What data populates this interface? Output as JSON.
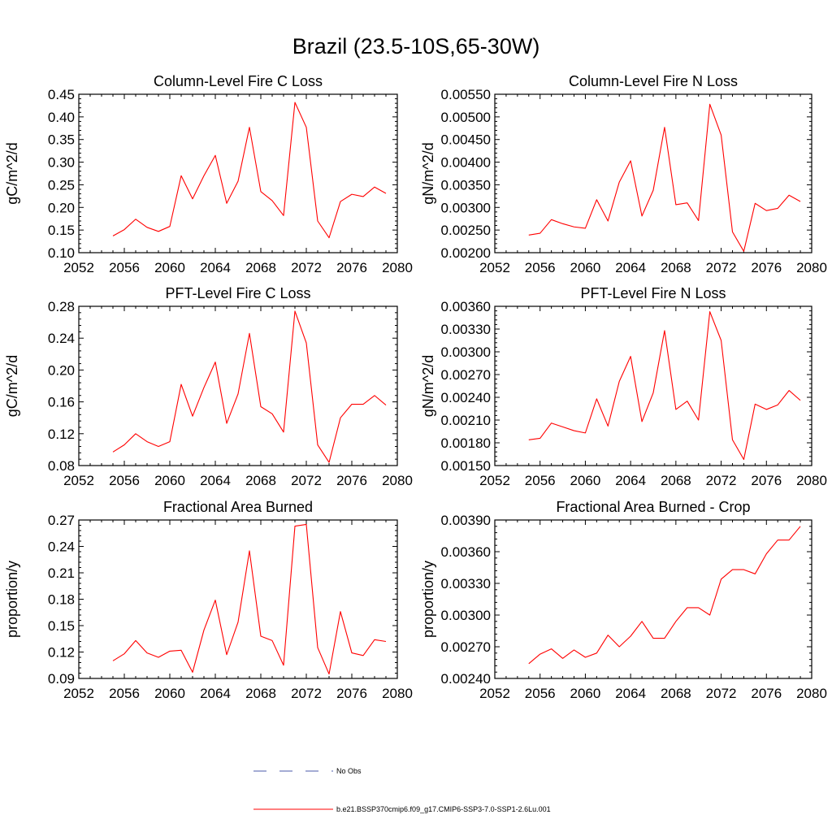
{
  "figure_title": "Brazil (23.5-10S,65-30W)",
  "legend": [
    {
      "label": "No Obs",
      "color": "#4a5aa8",
      "style": "dashed"
    },
    {
      "label": "b.e21.BSSP370cmip6.f09_g17.CMIP6-SSP3-7.0-SSP1-2.6Lu.001",
      "color": "#ff0000",
      "style": "solid"
    }
  ],
  "chart_data": [
    {
      "type": "line",
      "title": "Column-Level Fire C Loss",
      "ylabel": "gC/m^2/d",
      "xlim": [
        2052,
        2080
      ],
      "ylim": [
        0.1,
        0.45
      ],
      "xticks": [
        "2052",
        "2056",
        "2060",
        "2064",
        "2068",
        "2072",
        "2076",
        "2080"
      ],
      "yticks": [
        "0.10",
        "0.15",
        "0.20",
        "0.25",
        "0.30",
        "0.35",
        "0.40",
        "0.45"
      ],
      "x": [
        2055,
        2056,
        2057,
        2058,
        2059,
        2060,
        2061,
        2062,
        2063,
        2064,
        2065,
        2066,
        2067,
        2068,
        2069,
        2070,
        2071,
        2072,
        2073,
        2074,
        2075,
        2076,
        2077,
        2078,
        2079
      ],
      "series": [
        {
          "values": [
            0.137,
            0.151,
            0.174,
            0.156,
            0.147,
            0.158,
            0.27,
            0.219,
            0.27,
            0.315,
            0.209,
            0.258,
            0.377,
            0.235,
            0.215,
            0.182,
            0.432,
            0.377,
            0.17,
            0.133,
            0.213,
            0.229,
            0.224,
            0.245,
            0.231
          ],
          "color": "#ff0000"
        }
      ]
    },
    {
      "type": "line",
      "title": "Column-Level Fire N Loss",
      "ylabel": "gN/m^2/d",
      "xlim": [
        2052,
        2080
      ],
      "ylim": [
        0.002,
        0.0055
      ],
      "xticks": [
        "2052",
        "2056",
        "2060",
        "2064",
        "2068",
        "2072",
        "2076",
        "2080"
      ],
      "yticks": [
        "0.00200",
        "0.00250",
        "0.00300",
        "0.00350",
        "0.00400",
        "0.00450",
        "0.00500",
        "0.00550"
      ],
      "x": [
        2055,
        2056,
        2057,
        2058,
        2059,
        2060,
        2061,
        2062,
        2063,
        2064,
        2065,
        2066,
        2067,
        2068,
        2069,
        2070,
        2071,
        2072,
        2073,
        2074,
        2075,
        2076,
        2077,
        2078,
        2079
      ],
      "series": [
        {
          "values": [
            0.00239,
            0.00243,
            0.00273,
            0.00264,
            0.00257,
            0.00254,
            0.00317,
            0.0027,
            0.00356,
            0.00403,
            0.00281,
            0.00338,
            0.00477,
            0.00306,
            0.0031,
            0.00271,
            0.00528,
            0.0046,
            0.00246,
            0.00203,
            0.00309,
            0.00293,
            0.00298,
            0.00327,
            0.00313
          ],
          "color": "#ff0000"
        }
      ]
    },
    {
      "type": "line",
      "title": "PFT-Level Fire C Loss",
      "ylabel": "gC/m^2/d",
      "xlim": [
        2052,
        2080
      ],
      "ylim": [
        0.08,
        0.28
      ],
      "xticks": [
        "2052",
        "2056",
        "2060",
        "2064",
        "2068",
        "2072",
        "2076",
        "2080"
      ],
      "yticks": [
        "0.08",
        "0.12",
        "0.16",
        "0.20",
        "0.24",
        "0.28"
      ],
      "x": [
        2055,
        2056,
        2057,
        2058,
        2059,
        2060,
        2061,
        2062,
        2063,
        2064,
        2065,
        2066,
        2067,
        2068,
        2069,
        2070,
        2071,
        2072,
        2073,
        2074,
        2075,
        2076,
        2077,
        2078,
        2079
      ],
      "series": [
        {
          "values": [
            0.097,
            0.106,
            0.12,
            0.11,
            0.104,
            0.11,
            0.182,
            0.142,
            0.178,
            0.21,
            0.133,
            0.17,
            0.246,
            0.154,
            0.145,
            0.122,
            0.274,
            0.234,
            0.106,
            0.084,
            0.14,
            0.157,
            0.157,
            0.168,
            0.156
          ],
          "color": "#ff0000"
        }
      ]
    },
    {
      "type": "line",
      "title": "PFT-Level Fire N Loss",
      "ylabel": "gN/m^2/d",
      "xlim": [
        2052,
        2080
      ],
      "ylim": [
        0.0015,
        0.0036
      ],
      "xticks": [
        "2052",
        "2056",
        "2060",
        "2064",
        "2068",
        "2072",
        "2076",
        "2080"
      ],
      "yticks": [
        "0.00150",
        "0.00180",
        "0.00210",
        "0.00240",
        "0.00270",
        "0.00300",
        "0.00330",
        "0.00360"
      ],
      "x": [
        2055,
        2056,
        2057,
        2058,
        2059,
        2060,
        2061,
        2062,
        2063,
        2064,
        2065,
        2066,
        2067,
        2068,
        2069,
        2070,
        2071,
        2072,
        2073,
        2074,
        2075,
        2076,
        2077,
        2078,
        2079
      ],
      "series": [
        {
          "values": [
            0.00184,
            0.00186,
            0.00206,
            0.00201,
            0.00196,
            0.00193,
            0.00238,
            0.00202,
            0.00261,
            0.00294,
            0.00208,
            0.00246,
            0.00328,
            0.00224,
            0.00235,
            0.0021,
            0.00353,
            0.00315,
            0.00184,
            0.00158,
            0.00231,
            0.00224,
            0.0023,
            0.00249,
            0.00236
          ],
          "color": "#ff0000"
        }
      ]
    },
    {
      "type": "line",
      "title": "Fractional Area Burned",
      "ylabel": "proportion/y",
      "xlim": [
        2052,
        2080
      ],
      "ylim": [
        0.09,
        0.27
      ],
      "xticks": [
        "2052",
        "2056",
        "2060",
        "2064",
        "2068",
        "2072",
        "2076",
        "2080"
      ],
      "yticks": [
        "0.09",
        "0.12",
        "0.15",
        "0.18",
        "0.21",
        "0.24",
        "0.27"
      ],
      "x": [
        2055,
        2056,
        2057,
        2058,
        2059,
        2060,
        2061,
        2062,
        2063,
        2064,
        2065,
        2066,
        2067,
        2068,
        2069,
        2070,
        2071,
        2072,
        2073,
        2074,
        2075,
        2076,
        2077,
        2078,
        2079
      ],
      "series": [
        {
          "values": [
            0.11,
            0.118,
            0.133,
            0.119,
            0.114,
            0.121,
            0.122,
            0.097,
            0.145,
            0.179,
            0.117,
            0.154,
            0.235,
            0.138,
            0.133,
            0.105,
            0.263,
            0.265,
            0.125,
            0.095,
            0.166,
            0.119,
            0.116,
            0.134,
            0.132
          ],
          "color": "#ff0000"
        }
      ]
    },
    {
      "type": "line",
      "title": "Fractional Area Burned - Crop",
      "ylabel": "proportion/y",
      "xlim": [
        2052,
        2080
      ],
      "ylim": [
        0.0024,
        0.0039
      ],
      "xticks": [
        "2052",
        "2056",
        "2060",
        "2064",
        "2068",
        "2072",
        "2076",
        "2080"
      ],
      "yticks": [
        "0.00240",
        "0.00270",
        "0.00300",
        "0.00330",
        "0.00360",
        "0.00390"
      ],
      "x": [
        2055,
        2056,
        2057,
        2058,
        2059,
        2060,
        2061,
        2062,
        2063,
        2064,
        2065,
        2066,
        2067,
        2068,
        2069,
        2070,
        2071,
        2072,
        2073,
        2074,
        2075,
        2076,
        2077,
        2078,
        2079
      ],
      "series": [
        {
          "values": [
            0.00254,
            0.00263,
            0.00268,
            0.00259,
            0.00267,
            0.0026,
            0.00264,
            0.00281,
            0.0027,
            0.0028,
            0.00294,
            0.00278,
            0.00278,
            0.00294,
            0.00307,
            0.00307,
            0.003,
            0.00334,
            0.00343,
            0.00343,
            0.00339,
            0.00358,
            0.00371,
            0.00371,
            0.00384
          ],
          "color": "#ff0000"
        }
      ]
    }
  ]
}
